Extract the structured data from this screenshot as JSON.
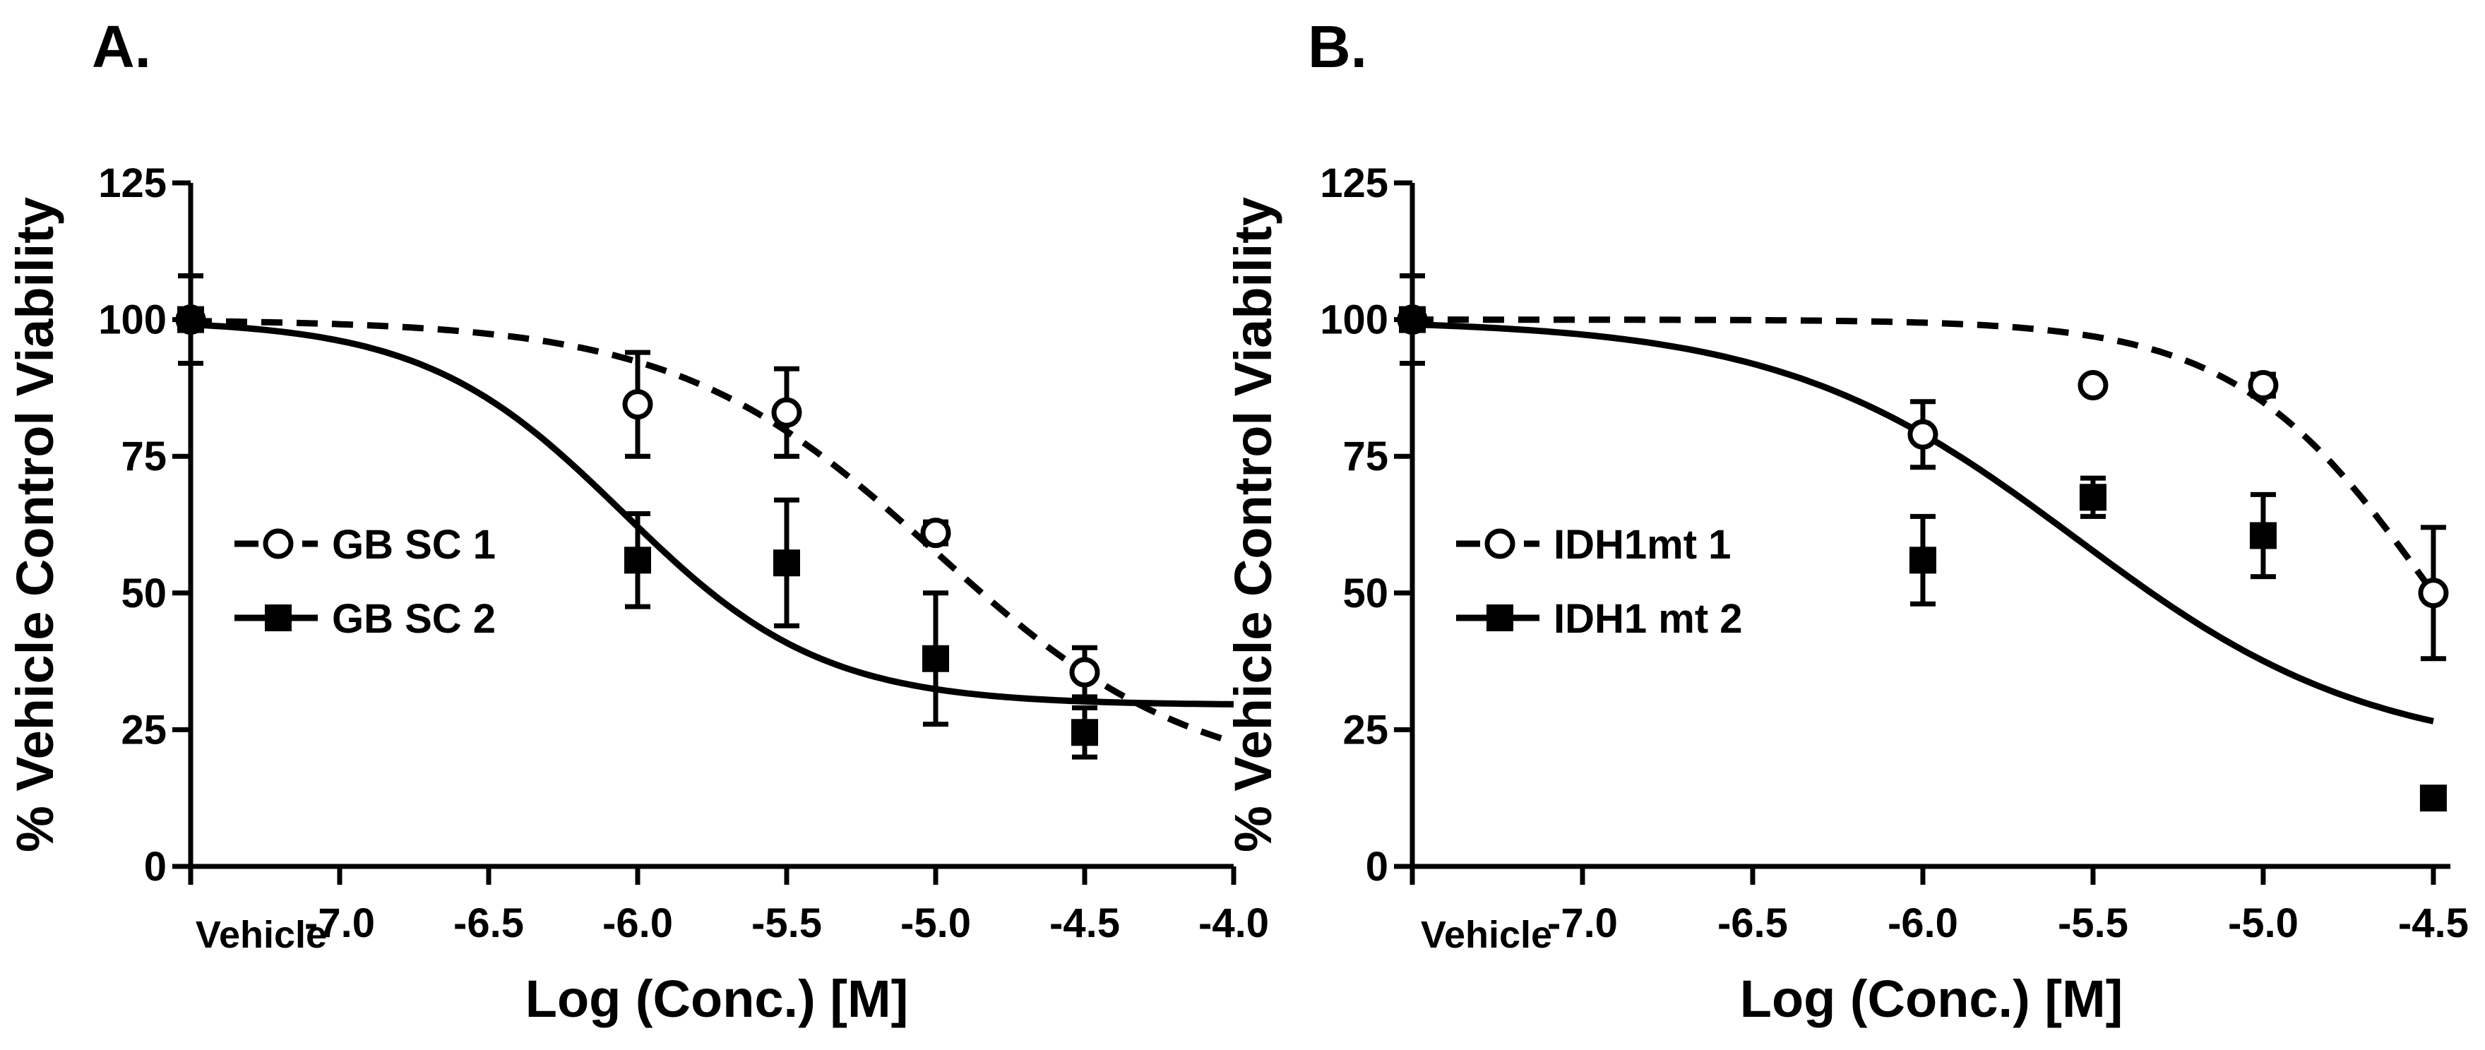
{
  "chart_data": [
    {
      "type": "scatter",
      "panel_label": "A.",
      "xlabel": "Log (Conc.) [M]",
      "ylabel": "% Vehicle Control Viability",
      "ylim": [
        0,
        125
      ],
      "yticks": [
        0,
        25,
        50,
        75,
        100,
        125
      ],
      "xlim": [
        -7.5,
        -4.0
      ],
      "xticks": [
        -7.0,
        -6.5,
        -6.0,
        -5.5,
        -5.0,
        -4.5,
        -4.0
      ],
      "xtick_labels": [
        "-7.0",
        "-6.5",
        "-6.0",
        "-5.5",
        "-5.0",
        "-4.5",
        "-4.0"
      ],
      "vehicle_label": "Vehicle",
      "vehicle_x": -7.5,
      "legend_position": "middle-left",
      "series": [
        {
          "name": "GB SC 1",
          "marker": "open-circle",
          "curve": "dashed",
          "x": [
            -7.5,
            -6.0,
            -5.5,
            -5.0,
            -4.5
          ],
          "y": [
            100,
            84.5,
            83,
            61,
            35.5
          ],
          "err": [
            8,
            9.5,
            8,
            2,
            4.5
          ],
          "fit": {
            "top": 100,
            "bottom": 15,
            "logEC50": -5.0,
            "hill": 1.0,
            "xmin": -7.5,
            "xmax": -4.0
          }
        },
        {
          "name": "GB SC 2",
          "marker": "filled-square",
          "curve": "solid",
          "x": [
            -7.5,
            -6.0,
            -5.5,
            -5.0,
            -4.5
          ],
          "y": [
            100,
            56,
            55.5,
            38,
            24.5
          ],
          "err": [
            8,
            8.5,
            11.5,
            12,
            4.5
          ],
          "fit": {
            "top": 100,
            "bottom": 29.5,
            "logEC50": -6.05,
            "hill": 1.3,
            "xmin": -7.5,
            "xmax": -4.0
          }
        }
      ]
    },
    {
      "type": "scatter",
      "panel_label": "B.",
      "xlabel": "Log (Conc.) [M]",
      "ylabel": "% Vehicle Control Viability",
      "ylim": [
        0,
        125
      ],
      "yticks": [
        0,
        25,
        50,
        75,
        100,
        125
      ],
      "xlim": [
        -7.5,
        -4.45
      ],
      "xticks": [
        -7.0,
        -6.5,
        -6.0,
        -5.5,
        -5.0,
        -4.5
      ],
      "xtick_labels": [
        "-7.0",
        "-6.5",
        "-6.0",
        "-5.5",
        "-5.0",
        "-4.5"
      ],
      "vehicle_label": "Vehicle",
      "vehicle_x": -7.5,
      "legend_position": "middle-left",
      "series": [
        {
          "name": "IDH1mt 1",
          "marker": "open-circle",
          "curve": "dashed",
          "x": [
            -7.5,
            -6.0,
            -5.5,
            -5.0,
            -4.5
          ],
          "y": [
            100,
            79,
            88,
            88,
            50
          ],
          "err": [
            8,
            6,
            0,
            2,
            12
          ],
          "fit": {
            "top": 100,
            "bottom": 0,
            "logEC50": -4.5,
            "hill": 1.5,
            "xmin": -7.5,
            "xmax": -4.5
          }
        },
        {
          "name": "IDH1 mt 2",
          "marker": "filled-square",
          "curve": "solid",
          "x": [
            -7.5,
            -6.0,
            -5.5,
            -5.0,
            -4.5
          ],
          "y": [
            100,
            56,
            67.5,
            60.5,
            12.5
          ],
          "err": [
            8,
            8,
            3.5,
            7.5,
            0
          ],
          "fit": {
            "top": 100,
            "bottom": 20,
            "logEC50": -5.55,
            "hill": 1.0,
            "xmin": -7.5,
            "xmax": -4.5
          }
        }
      ]
    }
  ]
}
